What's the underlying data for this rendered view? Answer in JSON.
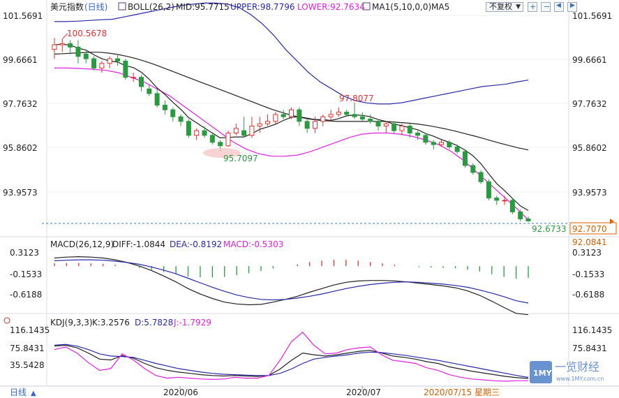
{
  "header": {
    "index_name": "美元指数",
    "period_label": "(日线)",
    "boll": "BOLL(26,2)",
    "mid": "MID:95.7715",
    "upper": "UPPER:98.7796",
    "lower": "LOWER:92.7634",
    "ma": "MA1(5,10,0,0)",
    "ma5": "MA5",
    "restore_select": "不复权",
    "colors": {
      "mid": "#222222",
      "upper": "#2929a8",
      "lower": "#e020e0",
      "ma5": "#222222",
      "rise": "#e03030",
      "fall": "#2a9a40",
      "dash": "#3377cc",
      "price_box": "#d86000"
    }
  },
  "main_axis": {
    "ticks": [
      "101.5691",
      "99.6661",
      "97.7632",
      "95.8602",
      "93.9573"
    ],
    "price_last": "92.7070",
    "price_extra": "92.0841"
  },
  "annotations": {
    "high_label": "100.5678",
    "mid_high_label": "97.8077",
    "low_label": "95.7097",
    "last_label": "92.6733"
  },
  "macd_header": {
    "title": "MACD(26,12,9)",
    "diff": "DIFF:-1.0844",
    "dea": "DEA:-0.8192",
    "macd": "MACD:-0.5303"
  },
  "macd_axis": {
    "ticks": [
      "0.3123",
      "-0.1533",
      "-0.6188"
    ]
  },
  "kdj_header": {
    "title": "KDJ(9,3,3)",
    "k": "K:3.2576",
    "d": "D:5.7828",
    "j": "J:-1.7929"
  },
  "kdj_axis": {
    "ticks": [
      "116.1435",
      "75.8431",
      "35.5428"
    ]
  },
  "footer": {
    "period_button": "日线",
    "period_arrow": "▲",
    "date_labels": [
      "2020/06",
      "2020/07"
    ],
    "cursor_date": "2020/07/15 星期三"
  },
  "watermark": {
    "logo": "1MY",
    "brand": "一览财经",
    "url": "www.1MY.com.cn"
  },
  "chart_data": [
    {
      "type": "candlestick",
      "title": "美元指数(日线)",
      "series_style": "OHLC",
      "ylim": [
        92.4,
        102.2
      ],
      "candles": [
        {
          "o": 100.1,
          "h": 100.6,
          "l": 99.7,
          "c": 100.3
        },
        {
          "o": 100.3,
          "h": 100.57,
          "l": 100.0,
          "c": 100.35
        },
        {
          "o": 100.35,
          "h": 100.5,
          "l": 99.9,
          "c": 100.2
        },
        {
          "o": 100.2,
          "h": 100.5,
          "l": 99.5,
          "c": 99.8
        },
        {
          "o": 99.9,
          "h": 100.1,
          "l": 99.5,
          "c": 99.7
        },
        {
          "o": 99.7,
          "h": 99.8,
          "l": 99.2,
          "c": 99.3
        },
        {
          "o": 99.3,
          "h": 99.6,
          "l": 99.1,
          "c": 99.5
        },
        {
          "o": 99.5,
          "h": 99.8,
          "l": 99.3,
          "c": 99.7
        },
        {
          "o": 99.7,
          "h": 99.9,
          "l": 99.4,
          "c": 99.6
        },
        {
          "o": 99.6,
          "h": 99.7,
          "l": 98.8,
          "c": 98.9
        },
        {
          "o": 98.9,
          "h": 99.1,
          "l": 98.7,
          "c": 98.9
        },
        {
          "o": 98.9,
          "h": 99.0,
          "l": 98.3,
          "c": 98.5
        },
        {
          "o": 98.4,
          "h": 98.6,
          "l": 98.1,
          "c": 98.2
        },
        {
          "o": 98.2,
          "h": 98.4,
          "l": 97.6,
          "c": 97.7
        },
        {
          "o": 97.7,
          "h": 97.9,
          "l": 97.3,
          "c": 97.5
        },
        {
          "o": 97.5,
          "h": 97.6,
          "l": 97.0,
          "c": 97.2
        },
        {
          "o": 97.2,
          "h": 97.3,
          "l": 96.8,
          "c": 97.0
        },
        {
          "o": 97.0,
          "h": 97.1,
          "l": 96.3,
          "c": 96.4
        },
        {
          "o": 96.4,
          "h": 96.7,
          "l": 96.2,
          "c": 96.6
        },
        {
          "o": 96.6,
          "h": 96.8,
          "l": 96.3,
          "c": 96.4
        },
        {
          "o": 96.4,
          "h": 96.5,
          "l": 96.0,
          "c": 96.1
        },
        {
          "o": 96.1,
          "h": 96.2,
          "l": 95.71,
          "c": 95.95
        },
        {
          "o": 95.95,
          "h": 96.6,
          "l": 95.9,
          "c": 96.5
        },
        {
          "o": 96.5,
          "h": 96.9,
          "l": 96.4,
          "c": 96.7
        },
        {
          "o": 96.6,
          "h": 97.2,
          "l": 96.3,
          "c": 96.4
        },
        {
          "o": 96.4,
          "h": 97.2,
          "l": 96.3,
          "c": 96.8
        },
        {
          "o": 96.8,
          "h": 97.2,
          "l": 96.5,
          "c": 96.9
        },
        {
          "o": 96.9,
          "h": 97.3,
          "l": 96.8,
          "c": 97.0
        },
        {
          "o": 97.0,
          "h": 97.4,
          "l": 96.9,
          "c": 97.3
        },
        {
          "o": 97.3,
          "h": 97.5,
          "l": 97.1,
          "c": 97.2
        },
        {
          "o": 97.2,
          "h": 97.6,
          "l": 97.1,
          "c": 97.5
        },
        {
          "o": 97.5,
          "h": 97.6,
          "l": 96.8,
          "c": 97.0
        },
        {
          "o": 97.0,
          "h": 97.1,
          "l": 96.5,
          "c": 96.7
        },
        {
          "o": 96.7,
          "h": 97.2,
          "l": 96.5,
          "c": 97.0
        },
        {
          "o": 97.0,
          "h": 97.3,
          "l": 96.8,
          "c": 97.2
        },
        {
          "o": 97.2,
          "h": 97.5,
          "l": 97.0,
          "c": 97.3
        },
        {
          "o": 97.3,
          "h": 97.6,
          "l": 97.2,
          "c": 97.4
        },
        {
          "o": 97.4,
          "h": 97.5,
          "l": 97.2,
          "c": 97.3
        },
        {
          "o": 97.3,
          "h": 97.81,
          "l": 97.1,
          "c": 97.2
        },
        {
          "o": 97.2,
          "h": 97.4,
          "l": 97.0,
          "c": 97.1
        },
        {
          "o": 97.1,
          "h": 97.3,
          "l": 96.9,
          "c": 97.0
        },
        {
          "o": 97.0,
          "h": 97.1,
          "l": 96.6,
          "c": 96.8
        },
        {
          "o": 96.8,
          "h": 97.0,
          "l": 96.5,
          "c": 96.9
        },
        {
          "o": 96.9,
          "h": 97.0,
          "l": 96.5,
          "c": 96.6
        },
        {
          "o": 96.6,
          "h": 96.9,
          "l": 96.4,
          "c": 96.8
        },
        {
          "o": 96.8,
          "h": 96.9,
          "l": 96.3,
          "c": 96.5
        },
        {
          "o": 96.5,
          "h": 96.6,
          "l": 96.2,
          "c": 96.4
        },
        {
          "o": 96.4,
          "h": 96.5,
          "l": 96.0,
          "c": 96.1
        },
        {
          "o": 96.1,
          "h": 96.2,
          "l": 95.8,
          "c": 96.0
        },
        {
          "o": 96.0,
          "h": 96.2,
          "l": 95.9,
          "c": 96.1
        },
        {
          "o": 96.1,
          "h": 96.2,
          "l": 95.8,
          "c": 95.9
        },
        {
          "o": 95.9,
          "h": 96.0,
          "l": 95.6,
          "c": 95.7
        },
        {
          "o": 95.7,
          "h": 95.8,
          "l": 95.0,
          "c": 95.1
        },
        {
          "o": 95.1,
          "h": 95.2,
          "l": 94.7,
          "c": 94.8
        },
        {
          "o": 94.8,
          "h": 94.9,
          "l": 94.3,
          "c": 94.4
        },
        {
          "o": 94.4,
          "h": 94.5,
          "l": 93.6,
          "c": 93.7
        },
        {
          "o": 93.7,
          "h": 93.8,
          "l": 93.4,
          "c": 93.6
        },
        {
          "o": 93.6,
          "h": 93.8,
          "l": 93.4,
          "c": 93.6
        },
        {
          "o": 93.6,
          "h": 93.7,
          "l": 93.0,
          "c": 93.1
        },
        {
          "o": 93.1,
          "h": 93.2,
          "l": 92.7,
          "c": 92.8
        },
        {
          "o": 92.8,
          "h": 92.9,
          "l": 92.67,
          "c": 92.71
        }
      ],
      "boll_upper": [
        101.3,
        101.3,
        101.32,
        101.35,
        101.38,
        101.4,
        101.5,
        101.6,
        101.7,
        101.8,
        101.9,
        102.0,
        102.05,
        102.1,
        102.1,
        102.05,
        101.9,
        101.6,
        101.2,
        100.7,
        100.1,
        99.6,
        99.1,
        98.7,
        98.4,
        98.1,
        97.9,
        97.8,
        97.75,
        97.75,
        97.8,
        97.9,
        98.0,
        98.1,
        98.2,
        98.3,
        98.4,
        98.5,
        98.55,
        98.6,
        98.7,
        98.78
      ],
      "boll_mid": [
        99.9,
        99.92,
        99.94,
        99.96,
        99.98,
        99.98,
        99.94,
        99.88,
        99.8,
        99.7,
        99.58,
        99.45,
        99.3,
        99.15,
        99.0,
        98.85,
        98.7,
        98.55,
        98.4,
        98.25,
        98.1,
        97.95,
        97.8,
        97.65,
        97.5,
        97.38,
        97.27,
        97.17,
        97.1,
        97.05,
        97.02,
        97.0,
        97.0,
        97.0,
        97.0,
        97.0,
        97.0,
        96.98,
        96.95,
        96.92,
        96.88,
        96.82,
        96.75,
        96.67,
        96.58,
        96.48,
        96.38,
        96.27,
        96.16,
        96.05,
        95.95,
        95.85,
        95.77
      ],
      "boll_lower": [
        99.3,
        99.3,
        99.28,
        99.25,
        99.2,
        99.1,
        98.9,
        98.7,
        98.4,
        98.1,
        97.7,
        97.3,
        96.9,
        96.5,
        96.1,
        95.8,
        95.6,
        95.5,
        95.5,
        95.55,
        95.7,
        95.9,
        96.1,
        96.3,
        96.45,
        96.5,
        96.5,
        96.45,
        96.35,
        96.2,
        96.0,
        95.7,
        95.3,
        94.8,
        94.3,
        93.8,
        93.3,
        92.76
      ]
    },
    {
      "type": "line",
      "title": "MACD(26,12,9)",
      "ylim": [
        -1.1,
        0.45
      ],
      "series": [
        {
          "name": "DIFF",
          "values": [
            0.18,
            0.2,
            0.21,
            0.2,
            0.18,
            0.14,
            0.08,
            0.0,
            -0.1,
            -0.22,
            -0.35,
            -0.5,
            -0.62,
            -0.72,
            -0.8,
            -0.84,
            -0.86,
            -0.85,
            -0.8,
            -0.74,
            -0.67,
            -0.58,
            -0.5,
            -0.42,
            -0.36,
            -0.33,
            -0.32,
            -0.32,
            -0.33,
            -0.35,
            -0.38,
            -0.41,
            -0.44,
            -0.48,
            -0.55,
            -0.65,
            -0.78,
            -0.92,
            -1.05,
            -1.08
          ]
        },
        {
          "name": "DEA",
          "values": [
            0.12,
            0.13,
            0.14,
            0.14,
            0.13,
            0.11,
            0.08,
            0.04,
            -0.02,
            -0.09,
            -0.17,
            -0.27,
            -0.37,
            -0.47,
            -0.56,
            -0.64,
            -0.7,
            -0.74,
            -0.75,
            -0.74,
            -0.71,
            -0.67,
            -0.62,
            -0.56,
            -0.5,
            -0.45,
            -0.41,
            -0.38,
            -0.36,
            -0.35,
            -0.36,
            -0.38,
            -0.4,
            -0.43,
            -0.47,
            -0.53,
            -0.6,
            -0.68,
            -0.77,
            -0.82
          ]
        },
        {
          "name": "MACD",
          "values": [
            0.06,
            0.07,
            0.07,
            0.06,
            0.05,
            0.03,
            0.0,
            -0.04,
            -0.08,
            -0.13,
            -0.18,
            -0.23,
            -0.25,
            -0.25,
            -0.24,
            -0.2,
            -0.16,
            -0.11,
            -0.05,
            0.0,
            0.04,
            0.09,
            0.12,
            0.14,
            0.14,
            0.12,
            0.09,
            0.06,
            0.03,
            0.0,
            -0.02,
            -0.03,
            -0.04,
            -0.05,
            -0.08,
            -0.12,
            -0.18,
            -0.24,
            -0.28,
            -0.26
          ]
        }
      ]
    },
    {
      "type": "line",
      "title": "KDJ(9,3,3)",
      "ylim": [
        -5,
        130
      ],
      "series": [
        {
          "name": "K",
          "values": [
            78,
            80,
            74,
            62,
            48,
            46,
            56,
            50,
            38,
            28,
            22,
            18,
            15,
            12,
            10,
            9,
            10,
            9,
            8,
            10,
            25,
            45,
            62,
            58,
            55,
            58,
            62,
            66,
            68,
            62,
            55,
            52,
            48,
            42,
            38,
            30,
            25,
            20,
            16,
            12,
            8,
            5,
            3.26
          ]
        },
        {
          "name": "D",
          "values": [
            80,
            82,
            78,
            70,
            60,
            55,
            54,
            52,
            45,
            38,
            32,
            26,
            22,
            18,
            15,
            13,
            12,
            11,
            10,
            10,
            15,
            25,
            38,
            48,
            52,
            55,
            58,
            62,
            64,
            63,
            60,
            57,
            53,
            49,
            45,
            40,
            35,
            30,
            25,
            20,
            15,
            10,
            5.78
          ]
        },
        {
          "name": "J",
          "values": [
            70,
            76,
            62,
            40,
            22,
            26,
            60,
            46,
            26,
            10,
            4,
            6,
            4,
            2,
            1,
            2,
            6,
            4,
            4,
            10,
            45,
            88,
            110,
            80,
            60,
            62,
            70,
            74,
            76,
            58,
            45,
            42,
            38,
            28,
            22,
            12,
            6,
            2,
            0,
            -2,
            -3,
            -2,
            -1.79
          ]
        }
      ]
    }
  ]
}
